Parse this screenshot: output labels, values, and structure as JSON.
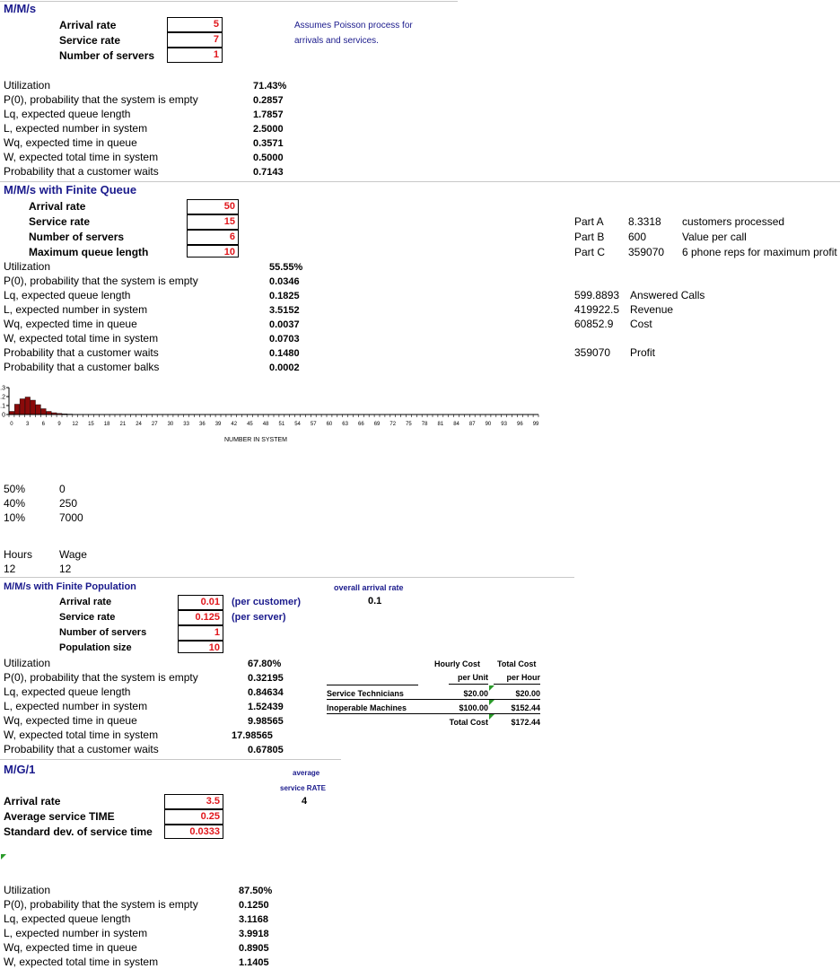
{
  "mms": {
    "title": "M/M/s",
    "inputs": [
      {
        "label": "Arrival rate",
        "value": "5"
      },
      {
        "label": "Service rate",
        "value": "7"
      },
      {
        "label": "Number of servers",
        "value": "1"
      }
    ],
    "note_line1": "Assumes Poisson process for",
    "note_line2": "arrivals and services.",
    "outputs": [
      {
        "label": "Utilization",
        "value": "71.43%"
      },
      {
        "label": "P(0), probability that the system is empty",
        "value": "0.2857"
      },
      {
        "label": "Lq, expected queue length",
        "value": "1.7857"
      },
      {
        "label": "L, expected number in system",
        "value": "2.5000"
      },
      {
        "label": "Wq, expected time in queue",
        "value": "0.3571"
      },
      {
        "label": "W, expected total time in system",
        "value": "0.5000"
      },
      {
        "label": "Probability that a customer waits",
        "value": "0.7143"
      }
    ]
  },
  "finite_queue": {
    "title": "M/M/s with Finite Queue",
    "inputs": [
      {
        "label": "Arrival rate",
        "value": "50"
      },
      {
        "label": "Service rate",
        "value": "15"
      },
      {
        "label": "Number of servers",
        "value": "6"
      },
      {
        "label": "Maximum queue length",
        "value": "10"
      }
    ],
    "outputs": [
      {
        "label": "Utilization",
        "value": "55.55%"
      },
      {
        "label": "P(0), probability that the system is empty",
        "value": "0.0346"
      },
      {
        "label": "Lq, expected queue length",
        "value": "0.1825"
      },
      {
        "label": "L, expected number in system",
        "value": "3.5152"
      },
      {
        "label": "Wq, expected time in queue",
        "value": "0.0037"
      },
      {
        "label": "W, expected total time in system",
        "value": "0.0703"
      },
      {
        "label": "Probability that a customer waits",
        "value": "0.1480"
      },
      {
        "label": "Probability that a customer balks",
        "value": "0.0002"
      }
    ]
  },
  "parts": [
    {
      "label": "Part A",
      "value": "8.3318",
      "desc": "customers processed"
    },
    {
      "label": "Part B",
      "value": "600",
      "desc": "Value per call"
    },
    {
      "label": "Part C",
      "value": "359070",
      "desc": "6 phone reps for maximum profit"
    }
  ],
  "calls": [
    {
      "value": "599.8893",
      "desc": "Answered Calls"
    },
    {
      "value": "419922.5",
      "desc": "Revenue"
    },
    {
      "value": "60852.9",
      "desc": "Cost"
    }
  ],
  "profit": {
    "value": "359070",
    "desc": "Profit"
  },
  "chart_data": {
    "type": "bar",
    "xlabel": "NUMBER IN SYSTEM",
    "ylabel": "",
    "ylim": [
      0,
      0.3
    ],
    "yticks": [
      "0.3",
      "0.2",
      "0.1",
      "0"
    ],
    "xticks": [
      "0",
      "3",
      "6",
      "9",
      "12",
      "15",
      "18",
      "21",
      "24",
      "27",
      "30",
      "33",
      "36",
      "39",
      "42",
      "45",
      "48",
      "51",
      "54",
      "57",
      "60",
      "63",
      "66",
      "69",
      "72",
      "75",
      "78",
      "81",
      "84",
      "87",
      "90",
      "93",
      "96",
      "99"
    ],
    "categories": [
      0,
      1,
      2,
      3,
      4,
      5,
      6,
      7,
      8,
      9,
      10,
      11,
      12,
      13,
      14,
      15,
      16
    ],
    "values": [
      0.035,
      0.115,
      0.175,
      0.195,
      0.16,
      0.11,
      0.065,
      0.035,
      0.02,
      0.012,
      0.008,
      0.005,
      0.003,
      0.002,
      0.001,
      0.0005,
      0.0002
    ],
    "bar_color": "#8b0a0a"
  },
  "pct_table": [
    {
      "pct": "50%",
      "val": "0"
    },
    {
      "pct": "40%",
      "val": "250"
    },
    {
      "pct": "10%",
      "val": "7000"
    }
  ],
  "hours_wage": {
    "h1": "Hours",
    "h2": "Wage",
    "v1": "12",
    "v2": "12"
  },
  "finite_pop": {
    "title": "M/M/s with Finite Population",
    "inputs": [
      {
        "label": "Arrival rate",
        "value": "0.01",
        "note": "(per customer)"
      },
      {
        "label": "Service rate",
        "value": "0.125",
        "note": "(per server)"
      },
      {
        "label": "Number of servers",
        "value": "1",
        "note": ""
      },
      {
        "label": "Population size",
        "value": "10",
        "note": ""
      }
    ],
    "overall_label": "overall arrival rate",
    "overall_value": "0.1",
    "outputs": [
      {
        "label": "Utilization",
        "value": "67.80%"
      },
      {
        "label": "P(0), probability that the system is empty",
        "value": "0.32195"
      },
      {
        "label": "Lq, expected queue length",
        "value": "0.84634"
      },
      {
        "label": "L, expected number in system",
        "value": "1.52439"
      },
      {
        "label": "Wq, expected time in queue",
        "value": "9.98565"
      },
      {
        "label": "W, expected total time in system",
        "value": "17.98565"
      },
      {
        "label": "Probability that a customer waits",
        "value": "0.67805"
      }
    ],
    "cost": {
      "h1a": "Hourly Cost",
      "h1b": "per Unit",
      "h2a": "Total Cost",
      "h2b": "per Hour",
      "rows": [
        {
          "label": "Service Technicians",
          "unit": "$20.00",
          "total": "$20.00"
        },
        {
          "label": "Inoperable Machines",
          "unit": "$100.00",
          "total": "$152.44"
        }
      ],
      "total_label": "Total Cost",
      "total_value": "$172.44"
    }
  },
  "mg1": {
    "title": "M/G/1",
    "avg_label1": "average",
    "avg_label2": "service RATE",
    "avg_value": "4",
    "inputs": [
      {
        "label": "Arrival rate",
        "value": "3.5"
      },
      {
        "label": "Average service TIME",
        "value": "0.25"
      },
      {
        "label": "Standard dev. of service time",
        "value": "0.0333"
      }
    ],
    "outputs": [
      {
        "label": "Utilization",
        "value": "87.50%"
      },
      {
        "label": "P(0), probability that the system is empty",
        "value": "0.1250"
      },
      {
        "label": "Lq, expected queue length",
        "value": "3.1168"
      },
      {
        "label": "L, expected number in system",
        "value": "3.9918"
      },
      {
        "label": "Wq, expected time in queue",
        "value": "0.8905"
      },
      {
        "label": "W, expected total time in system",
        "value": "1.1405"
      }
    ]
  }
}
